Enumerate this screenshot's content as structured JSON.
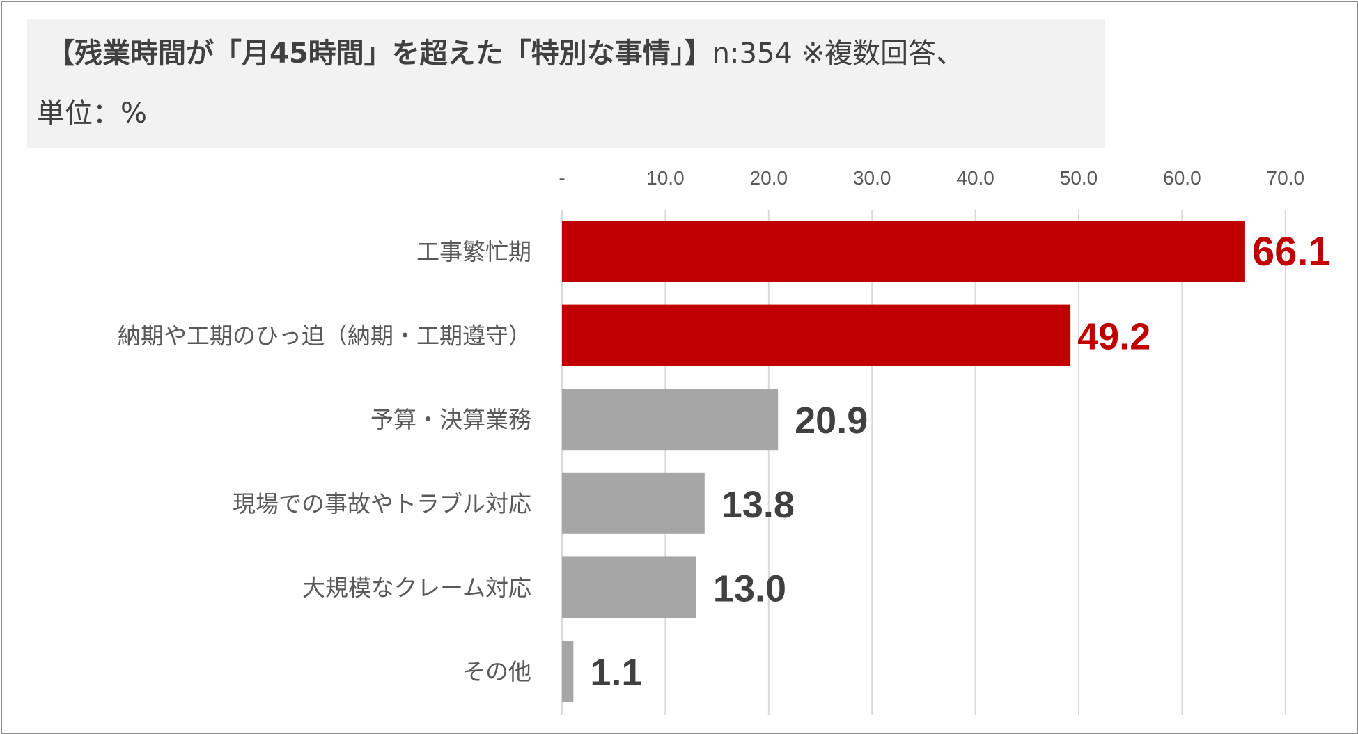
{
  "title": {
    "main": "【残業時間が「月45時間」を超えた「特別な事情」】",
    "note": "n:354 ※複数回答、",
    "unit": "単位：%"
  },
  "colors": {
    "highlight": "#c00000",
    "normal": "#a6a6a6",
    "label_normal": "#404040",
    "grid": "#d9d9d9"
  },
  "chart_data": {
    "type": "bar",
    "orientation": "horizontal",
    "categories": [
      "工事繁忙期",
      "納期や工期のひっ迫（納期・工期遵守）",
      "予算・決算業務",
      "現場での事故やトラブル対応",
      "大規模なクレーム対応",
      "その他"
    ],
    "values": [
      66.1,
      49.2,
      20.9,
      13.8,
      13.0,
      1.1
    ],
    "value_labels": [
      "66.1",
      "49.2",
      "20.9",
      "13.8",
      "13.0",
      "1.1"
    ],
    "highlighted": [
      true,
      true,
      false,
      false,
      false,
      false
    ],
    "xlim": [
      0,
      70
    ],
    "ticks": [
      0,
      10,
      20,
      30,
      40,
      50,
      60,
      70
    ],
    "tick_labels": [
      "-",
      "10.0",
      "20.0",
      "30.0",
      "40.0",
      "50.0",
      "60.0",
      "70.0"
    ],
    "axis_position": "top",
    "grid": true
  }
}
